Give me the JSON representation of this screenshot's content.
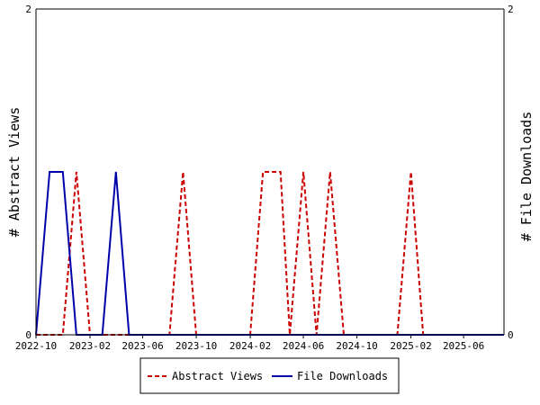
{
  "chart_data": {
    "type": "line",
    "ylabel_left": "# Abstract Views",
    "ylabel_right": "# File Downloads",
    "ylim": [
      0,
      2
    ],
    "y_ticks_left": [
      "0",
      "2"
    ],
    "y_ticks_right": [
      "0",
      "2"
    ],
    "xlim": [
      "2022-10-01",
      "2025-09-01"
    ],
    "x_ticks": [
      {
        "date": "2022-10-01",
        "label": "2022-10"
      },
      {
        "date": "2023-02-01",
        "label": "2023-02"
      },
      {
        "date": "2023-06-01",
        "label": "2023-06"
      },
      {
        "date": "2023-10-01",
        "label": "2023-10"
      },
      {
        "date": "2024-02-01",
        "label": "2024-02"
      },
      {
        "date": "2024-06-01",
        "label": "2024-06"
      },
      {
        "date": "2024-10-01",
        "label": "2024-10"
      },
      {
        "date": "2025-02-01",
        "label": "2025-02"
      },
      {
        "date": "2025-06-01",
        "label": "2025-06"
      }
    ],
    "legend_position": "bottom",
    "series": [
      {
        "name": "Abstract Views",
        "color": "#cc0000",
        "dash": "dashed",
        "points": [
          [
            "2022-10-01",
            0
          ],
          [
            "2022-12-01",
            0
          ],
          [
            "2023-01-01",
            1
          ],
          [
            "2023-02-01",
            0
          ],
          [
            "2023-08-01",
            0
          ],
          [
            "2023-09-01",
            1
          ],
          [
            "2023-10-01",
            0
          ],
          [
            "2024-02-01",
            0
          ],
          [
            "2024-03-01",
            1
          ],
          [
            "2024-04-10",
            1
          ],
          [
            "2024-05-01",
            0
          ],
          [
            "2024-06-01",
            1
          ],
          [
            "2024-07-01",
            0
          ],
          [
            "2024-08-01",
            1
          ],
          [
            "2024-09-01",
            0
          ],
          [
            "2025-01-01",
            0
          ],
          [
            "2025-02-01",
            1
          ],
          [
            "2025-03-01",
            0
          ],
          [
            "2025-09-01",
            0
          ]
        ]
      },
      {
        "name": "File Downloads",
        "color": "#0000aa",
        "dash": "solid",
        "points": [
          [
            "2022-10-01",
            0
          ],
          [
            "2022-11-01",
            1
          ],
          [
            "2022-12-01",
            1
          ],
          [
            "2023-01-01",
            0
          ],
          [
            "2023-03-01",
            0
          ],
          [
            "2023-04-01",
            1
          ],
          [
            "2023-05-01",
            0
          ],
          [
            "2025-09-01",
            0
          ]
        ]
      }
    ]
  }
}
